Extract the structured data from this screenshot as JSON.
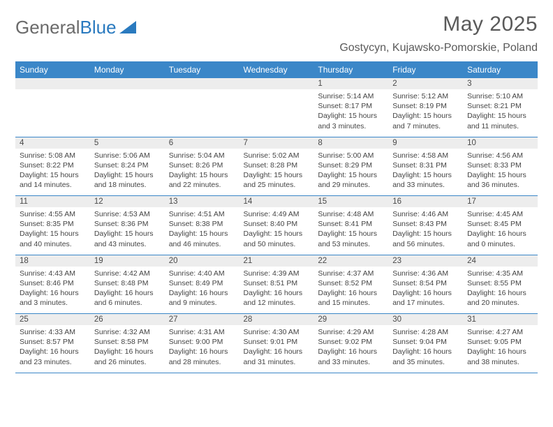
{
  "logo": {
    "text1": "General",
    "text2": "Blue"
  },
  "title": "May 2025",
  "location": "Gostycyn, Kujawsko-Pomorskie, Poland",
  "colors": {
    "header_bg": "#3b87c8",
    "header_text": "#ffffff",
    "daynum_bg": "#ededed",
    "text": "#444444",
    "title_color": "#5a5a5a",
    "logo_gray": "#6a6a6a",
    "logo_blue": "#2a7abf",
    "border": "#3b87c8"
  },
  "typography": {
    "title_fontsize": 30,
    "location_fontsize": 16,
    "weekday_fontsize": 12,
    "daynum_fontsize": 11.5,
    "cell_fontsize": 10.5
  },
  "weekdays": [
    "Sunday",
    "Monday",
    "Tuesday",
    "Wednesday",
    "Thursday",
    "Friday",
    "Saturday"
  ],
  "weeks": [
    [
      null,
      null,
      null,
      null,
      {
        "day": "1",
        "sunrise": "Sunrise: 5:14 AM",
        "sunset": "Sunset: 8:17 PM",
        "daylight": "Daylight: 15 hours and 3 minutes."
      },
      {
        "day": "2",
        "sunrise": "Sunrise: 5:12 AM",
        "sunset": "Sunset: 8:19 PM",
        "daylight": "Daylight: 15 hours and 7 minutes."
      },
      {
        "day": "3",
        "sunrise": "Sunrise: 5:10 AM",
        "sunset": "Sunset: 8:21 PM",
        "daylight": "Daylight: 15 hours and 11 minutes."
      }
    ],
    [
      {
        "day": "4",
        "sunrise": "Sunrise: 5:08 AM",
        "sunset": "Sunset: 8:22 PM",
        "daylight": "Daylight: 15 hours and 14 minutes."
      },
      {
        "day": "5",
        "sunrise": "Sunrise: 5:06 AM",
        "sunset": "Sunset: 8:24 PM",
        "daylight": "Daylight: 15 hours and 18 minutes."
      },
      {
        "day": "6",
        "sunrise": "Sunrise: 5:04 AM",
        "sunset": "Sunset: 8:26 PM",
        "daylight": "Daylight: 15 hours and 22 minutes."
      },
      {
        "day": "7",
        "sunrise": "Sunrise: 5:02 AM",
        "sunset": "Sunset: 8:28 PM",
        "daylight": "Daylight: 15 hours and 25 minutes."
      },
      {
        "day": "8",
        "sunrise": "Sunrise: 5:00 AM",
        "sunset": "Sunset: 8:29 PM",
        "daylight": "Daylight: 15 hours and 29 minutes."
      },
      {
        "day": "9",
        "sunrise": "Sunrise: 4:58 AM",
        "sunset": "Sunset: 8:31 PM",
        "daylight": "Daylight: 15 hours and 33 minutes."
      },
      {
        "day": "10",
        "sunrise": "Sunrise: 4:56 AM",
        "sunset": "Sunset: 8:33 PM",
        "daylight": "Daylight: 15 hours and 36 minutes."
      }
    ],
    [
      {
        "day": "11",
        "sunrise": "Sunrise: 4:55 AM",
        "sunset": "Sunset: 8:35 PM",
        "daylight": "Daylight: 15 hours and 40 minutes."
      },
      {
        "day": "12",
        "sunrise": "Sunrise: 4:53 AM",
        "sunset": "Sunset: 8:36 PM",
        "daylight": "Daylight: 15 hours and 43 minutes."
      },
      {
        "day": "13",
        "sunrise": "Sunrise: 4:51 AM",
        "sunset": "Sunset: 8:38 PM",
        "daylight": "Daylight: 15 hours and 46 minutes."
      },
      {
        "day": "14",
        "sunrise": "Sunrise: 4:49 AM",
        "sunset": "Sunset: 8:40 PM",
        "daylight": "Daylight: 15 hours and 50 minutes."
      },
      {
        "day": "15",
        "sunrise": "Sunrise: 4:48 AM",
        "sunset": "Sunset: 8:41 PM",
        "daylight": "Daylight: 15 hours and 53 minutes."
      },
      {
        "day": "16",
        "sunrise": "Sunrise: 4:46 AM",
        "sunset": "Sunset: 8:43 PM",
        "daylight": "Daylight: 15 hours and 56 minutes."
      },
      {
        "day": "17",
        "sunrise": "Sunrise: 4:45 AM",
        "sunset": "Sunset: 8:45 PM",
        "daylight": "Daylight: 16 hours and 0 minutes."
      }
    ],
    [
      {
        "day": "18",
        "sunrise": "Sunrise: 4:43 AM",
        "sunset": "Sunset: 8:46 PM",
        "daylight": "Daylight: 16 hours and 3 minutes."
      },
      {
        "day": "19",
        "sunrise": "Sunrise: 4:42 AM",
        "sunset": "Sunset: 8:48 PM",
        "daylight": "Daylight: 16 hours and 6 minutes."
      },
      {
        "day": "20",
        "sunrise": "Sunrise: 4:40 AM",
        "sunset": "Sunset: 8:49 PM",
        "daylight": "Daylight: 16 hours and 9 minutes."
      },
      {
        "day": "21",
        "sunrise": "Sunrise: 4:39 AM",
        "sunset": "Sunset: 8:51 PM",
        "daylight": "Daylight: 16 hours and 12 minutes."
      },
      {
        "day": "22",
        "sunrise": "Sunrise: 4:37 AM",
        "sunset": "Sunset: 8:52 PM",
        "daylight": "Daylight: 16 hours and 15 minutes."
      },
      {
        "day": "23",
        "sunrise": "Sunrise: 4:36 AM",
        "sunset": "Sunset: 8:54 PM",
        "daylight": "Daylight: 16 hours and 17 minutes."
      },
      {
        "day": "24",
        "sunrise": "Sunrise: 4:35 AM",
        "sunset": "Sunset: 8:55 PM",
        "daylight": "Daylight: 16 hours and 20 minutes."
      }
    ],
    [
      {
        "day": "25",
        "sunrise": "Sunrise: 4:33 AM",
        "sunset": "Sunset: 8:57 PM",
        "daylight": "Daylight: 16 hours and 23 minutes."
      },
      {
        "day": "26",
        "sunrise": "Sunrise: 4:32 AM",
        "sunset": "Sunset: 8:58 PM",
        "daylight": "Daylight: 16 hours and 26 minutes."
      },
      {
        "day": "27",
        "sunrise": "Sunrise: 4:31 AM",
        "sunset": "Sunset: 9:00 PM",
        "daylight": "Daylight: 16 hours and 28 minutes."
      },
      {
        "day": "28",
        "sunrise": "Sunrise: 4:30 AM",
        "sunset": "Sunset: 9:01 PM",
        "daylight": "Daylight: 16 hours and 31 minutes."
      },
      {
        "day": "29",
        "sunrise": "Sunrise: 4:29 AM",
        "sunset": "Sunset: 9:02 PM",
        "daylight": "Daylight: 16 hours and 33 minutes."
      },
      {
        "day": "30",
        "sunrise": "Sunrise: 4:28 AM",
        "sunset": "Sunset: 9:04 PM",
        "daylight": "Daylight: 16 hours and 35 minutes."
      },
      {
        "day": "31",
        "sunrise": "Sunrise: 4:27 AM",
        "sunset": "Sunset: 9:05 PM",
        "daylight": "Daylight: 16 hours and 38 minutes."
      }
    ]
  ]
}
